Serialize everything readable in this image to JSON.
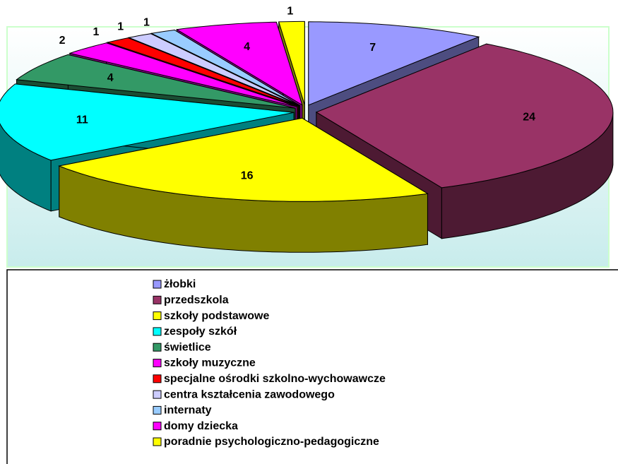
{
  "chart_data": {
    "type": "pie",
    "categories": [
      "żłobki",
      "przedszkola",
      "szkoły podstawowe",
      "zespoły szkół",
      "świetlice",
      "szkoły muzyczne",
      "specjalne ośrodki szkolno-wychowawcze",
      "centra kształcenia zawodowego",
      "internaty",
      "domy dziecka",
      "poradnie psychologiczno-pedagogiczne"
    ],
    "values": [
      7,
      24,
      16,
      11,
      4,
      2,
      1,
      1,
      1,
      4,
      1
    ],
    "colors": [
      "#9999ff",
      "#993366",
      "#ffff00",
      "#00ffff",
      "#339966",
      "#ff00ff",
      "#ff0000",
      "#ccccff",
      "#99ccff",
      "#ff00ff",
      "#ffff00"
    ]
  }
}
